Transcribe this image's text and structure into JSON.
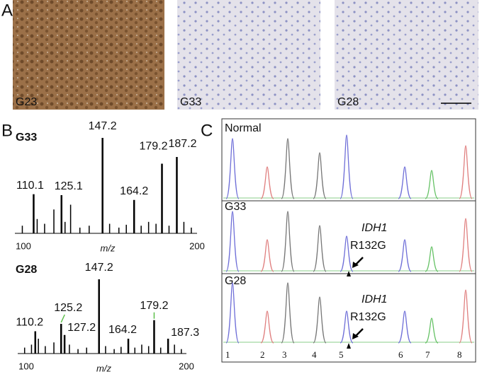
{
  "panel_a": {
    "letter": "A",
    "images": [
      "G23",
      "G33",
      "G28"
    ]
  },
  "panel_b": {
    "letter": "B",
    "spectra": [
      {
        "title": "G33",
        "xlim": [
          100,
          200
        ],
        "xticks": [
          100,
          200
        ],
        "xlabel": "m/z",
        "peaks": [
          {
            "mz": 110.1,
            "height": 41
          },
          {
            "mz": 125.1,
            "height": 40
          },
          {
            "mz": 147.2,
            "height": 100
          },
          {
            "mz": 164.2,
            "height": 35
          },
          {
            "mz": 179.2,
            "height": 73
          },
          {
            "mz": 187.2,
            "height": 80
          }
        ],
        "minor_mz": [
          104,
          112,
          116,
          121,
          127,
          130,
          135,
          140,
          151,
          156,
          160,
          168,
          172,
          176,
          183,
          191,
          195
        ],
        "minor_heights": [
          8,
          15,
          10,
          25,
          12,
          30,
          6,
          8,
          10,
          6,
          9,
          8,
          12,
          10,
          8,
          12,
          6
        ]
      },
      {
        "title": "G28",
        "xlim": [
          100,
          200
        ],
        "xticks": [
          100,
          200
        ],
        "xlabel": "m/z",
        "peaks": [
          {
            "mz": 110.2,
            "height": 30
          },
          {
            "mz": 125.2,
            "height": 40
          },
          {
            "mz": 127.2,
            "height": 25
          },
          {
            "mz": 147.2,
            "height": 100
          },
          {
            "mz": 164.2,
            "height": 20
          },
          {
            "mz": 179.2,
            "height": 45
          },
          {
            "mz": 187.3,
            "height": 20
          }
        ],
        "minor_mz": [
          104,
          108,
          112,
          116,
          121,
          130,
          135,
          140,
          151,
          156,
          160,
          168,
          172,
          176,
          183,
          191,
          195
        ],
        "minor_heights": [
          8,
          12,
          20,
          10,
          15,
          12,
          6,
          8,
          10,
          6,
          9,
          8,
          12,
          10,
          8,
          12,
          6
        ]
      }
    ]
  },
  "panel_c": {
    "letter": "C",
    "peak_colors": [
      "#6f6fd8",
      "#e08080",
      "#777777",
      "#777777",
      "#6f6fd8",
      "#6f6fd8",
      "#66c266",
      "#e08080"
    ],
    "traces": [
      {
        "name": "Normal",
        "heights": [
          85,
          45,
          85,
          65,
          90,
          45,
          40,
          75
        ]
      },
      {
        "name": "G33",
        "heights": [
          85,
          45,
          85,
          65,
          50,
          45,
          35,
          75
        ]
      },
      {
        "name": "G28",
        "heights": [
          85,
          45,
          85,
          65,
          45,
          45,
          35,
          75
        ]
      }
    ],
    "annotations": [
      {
        "gene": "IDH1",
        "mutation": "R132G"
      },
      {
        "gene": "IDH1",
        "mutation": "R132G"
      }
    ],
    "peak_numbers": [
      "1",
      "2",
      "3",
      "4",
      "5",
      "6",
      "7",
      "8"
    ]
  }
}
